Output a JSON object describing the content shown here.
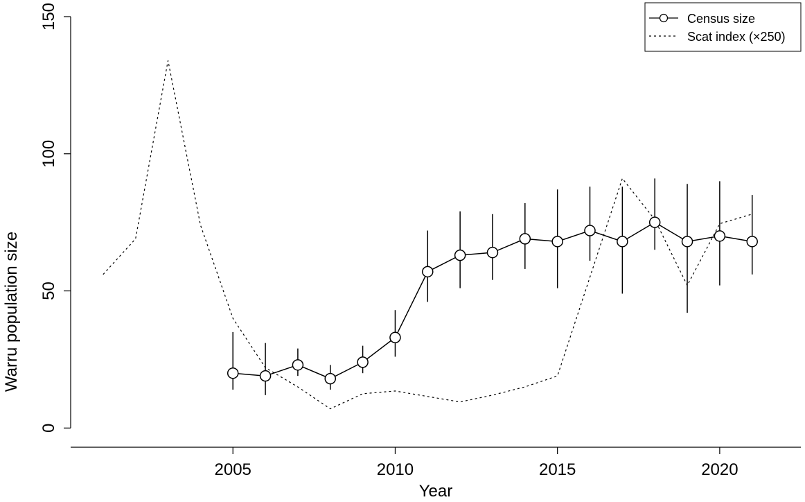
{
  "chart_data": {
    "type": "line",
    "title": "",
    "xlabel": "Year",
    "ylabel": "Warru population size",
    "xlim": [
      2000.0,
      2022.5
    ],
    "ylim": [
      -7,
      150
    ],
    "xticks": [
      2005,
      2010,
      2015,
      2020
    ],
    "yticks": [
      0,
      50,
      100,
      150
    ],
    "grid": false,
    "legend_position": "top-right",
    "series": [
      {
        "name": "Census size",
        "style": "solid-line-circles",
        "x": [
          2005,
          2006,
          2007,
          2008,
          2009,
          2010,
          2011,
          2012,
          2013,
          2014,
          2015,
          2016,
          2017,
          2018,
          2019,
          2020,
          2021
        ],
        "y": [
          20,
          19,
          23,
          18,
          24,
          33,
          57,
          63,
          64,
          69,
          68,
          72,
          68,
          75,
          68,
          70,
          68
        ],
        "lower": [
          14,
          12,
          19,
          14,
          20,
          26,
          46,
          51,
          54,
          58,
          51,
          61,
          49,
          65,
          42,
          52,
          56
        ],
        "upper": [
          35,
          31,
          29,
          23,
          30,
          43,
          72,
          79,
          78,
          82,
          87,
          88,
          88,
          91,
          89,
          90,
          85
        ]
      },
      {
        "name": "Scat index (×250)",
        "style": "dotted-line",
        "x": [
          2001,
          2002,
          2003,
          2004,
          2005,
          2006,
          2007,
          2008,
          2009,
          2010,
          2011,
          2012,
          2013,
          2014,
          2015,
          2016,
          2017,
          2018,
          2019,
          2020,
          2021
        ],
        "y": [
          56,
          69,
          134,
          74,
          40,
          22,
          15,
          7,
          12.5,
          13.5,
          11.5,
          9.5,
          12,
          15,
          19,
          55,
          91,
          76,
          52,
          74.5,
          78
        ]
      }
    ]
  }
}
